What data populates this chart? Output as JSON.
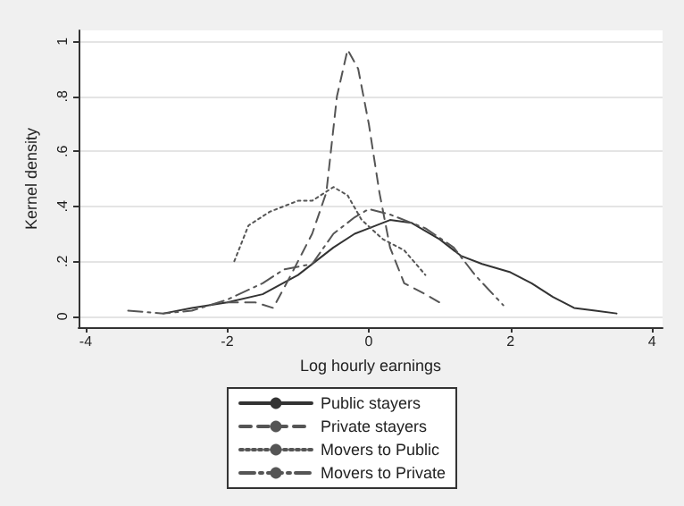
{
  "chart_data": {
    "type": "line",
    "xlabel": "Log hourly earnings",
    "ylabel": "Kernel density",
    "xlim": [
      -4.1,
      4.15
    ],
    "xticks": [
      -4,
      -2,
      0,
      2,
      4
    ],
    "ylim": [
      -0.04,
      1.04
    ],
    "yticks": [
      0,
      {
        "value": 0.2,
        "label": ".2"
      },
      {
        "value": 0.4,
        "label": ".4"
      },
      {
        "value": 0.6,
        "label": ".6"
      },
      {
        "value": 0.8,
        "label": ".8"
      },
      1
    ],
    "grid": "y",
    "legend": "bottom",
    "marker": "none",
    "series": [
      {
        "name": "Public stayers",
        "color": "#333333",
        "line_style": "solid",
        "x": [
          -2.9,
          -2.5,
          -2,
          -1.5,
          -1,
          -0.5,
          -0.2,
          0,
          0.3,
          0.6,
          1,
          1.3,
          1.6,
          2,
          2.3,
          2.6,
          2.9,
          3.2,
          3.5
        ],
        "values": [
          0.01,
          0.03,
          0.05,
          0.08,
          0.15,
          0.25,
          0.3,
          0.32,
          0.35,
          0.34,
          0.28,
          0.22,
          0.19,
          0.16,
          0.12,
          0.07,
          0.03,
          0.02,
          0.01
        ]
      },
      {
        "name": "Private stayers",
        "color": "#555555",
        "line_style": "dashed",
        "x": [
          -2,
          -1.6,
          -1.35,
          -1.1,
          -0.8,
          -0.6,
          -0.45,
          -0.3,
          -0.15,
          0,
          0.15,
          0.3,
          0.5,
          0.8,
          1
        ],
        "values": [
          0.05,
          0.05,
          0.03,
          0.15,
          0.3,
          0.45,
          0.8,
          0.97,
          0.9,
          0.7,
          0.45,
          0.25,
          0.12,
          0.08,
          0.05
        ]
      },
      {
        "name": "Movers to Public",
        "color": "#555555",
        "line_style": "dotted",
        "x": [
          -1.9,
          -1.7,
          -1.4,
          -1,
          -0.8,
          -0.5,
          -0.3,
          -0.1,
          0.2,
          0.5,
          0.8
        ],
        "values": [
          0.2,
          0.33,
          0.38,
          0.42,
          0.42,
          0.47,
          0.44,
          0.35,
          0.28,
          0.24,
          0.15
        ]
      },
      {
        "name": "Movers to Private",
        "color": "#555555",
        "line_style": "dashdot",
        "x": [
          -3.4,
          -2.9,
          -2.5,
          -2,
          -1.5,
          -1.2,
          -0.8,
          -0.5,
          -0.2,
          0,
          0.3,
          0.8,
          1.2,
          1.5,
          1.9
        ],
        "values": [
          0.02,
          0.01,
          0.02,
          0.06,
          0.12,
          0.17,
          0.19,
          0.3,
          0.36,
          0.39,
          0.37,
          0.32,
          0.25,
          0.15,
          0.04
        ]
      }
    ]
  }
}
